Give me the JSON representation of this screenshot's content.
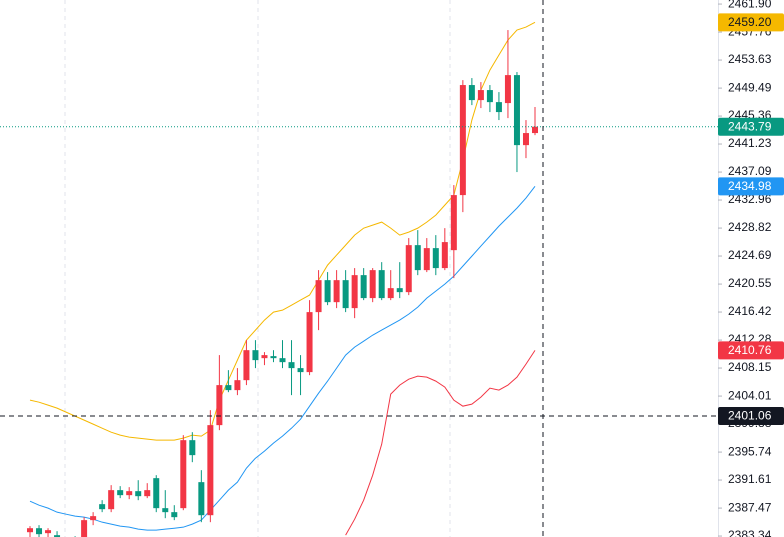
{
  "chart_data": {
    "type": "candlestick",
    "ylim": [
      2383.2,
      2462.5
    ],
    "yticks": [
      {
        "value": 2461.9,
        "label": "2461.90"
      },
      2457.76,
      2453.63,
      2449.49,
      2445.36,
      2441.23,
      2437.09,
      2432.96,
      2428.82,
      2424.69,
      2420.55,
      2416.42,
      2412.28,
      2408.15,
      2404.01,
      2399.88,
      2395.74,
      2391.61,
      2387.47,
      2383.34
    ],
    "up_color": "#f23645",
    "down_color": "#089981",
    "candles": {
      "open": [
        2383.91,
        2384.5,
        2383.77,
        2383.47,
        2381.99,
        2382.58,
        2383.18,
        2385.69,
        2388.05,
        2387.31,
        2390.12,
        2389.38,
        2389.97,
        2389.23,
        2391.89,
        2387.46,
        2386.87,
        2387.46,
        2397.5,
        2391.3,
        2386.42,
        2399.72,
        2405.63,
        2404.89,
        2406.36,
        2410.79,
        2409.61,
        2409.91,
        2409.61,
        2409.02,
        2408.14,
        2407.55,
        2416.41,
        2421.13,
        2417.88,
        2421.13,
        2417.0,
        2421.87,
        2418.48,
        2422.61,
        2418.48,
        2419.95,
        2419.36,
        2426.3,
        2422.61,
        2425.86,
        2422.91,
        2425.56,
        2433.69,
        2449.94,
        2447.72,
        2449.2,
        2447.42,
        2447.28,
        2451.41,
        2441.07,
        2442.85
      ],
      "high": [
        2384.8,
        2384.95,
        2384.5,
        2384.06,
        2383.03,
        2383.32,
        2386.13,
        2386.87,
        2388.64,
        2390.86,
        2390.71,
        2390.56,
        2391.59,
        2391.15,
        2392.33,
        2390.12,
        2387.9,
        2398.24,
        2398.68,
        2393.07,
        2401.93,
        2410.06,
        2407.84,
        2408.14,
        2412.27,
        2412.27,
        2410.5,
        2410.79,
        2412.27,
        2412.27,
        2410.06,
        2418.18,
        2422.61,
        2422.32,
        2422.61,
        2422.61,
        2422.91,
        2422.91,
        2422.91,
        2423.79,
        2422.61,
        2423.79,
        2427.34,
        2428.52,
        2427.34,
        2427.78,
        2428.81,
        2435.17,
        2450.67,
        2450.97,
        2450.38,
        2449.94,
        2448.9,
        2458.06,
        2451.86,
        2444.77,
        2446.69
      ],
      "low": [
        2383.18,
        2383.18,
        2383.18,
        2382.73,
        2381.25,
        2381.55,
        2382.73,
        2384.95,
        2386.87,
        2386.87,
        2388.94,
        2388.79,
        2388.64,
        2388.94,
        2386.87,
        2385.98,
        2385.69,
        2387.16,
        2394.25,
        2385.39,
        2385.39,
        2398.98,
        2404.59,
        2404.15,
        2405.63,
        2408.14,
        2408.58,
        2409.02,
        2408.14,
        2404.15,
        2404.15,
        2407.1,
        2413.75,
        2417.44,
        2417.0,
        2416.41,
        2415.52,
        2418.18,
        2417.88,
        2418.18,
        2418.18,
        2418.48,
        2418.92,
        2421.87,
        2422.32,
        2421.87,
        2422.61,
        2421.43,
        2431.18,
        2446.98,
        2446.54,
        2445.95,
        2444.77,
        2445.06,
        2437.09,
        2439.15,
        2442.55
      ],
      "close": [
        2384.5,
        2383.62,
        2384.21,
        2383.18,
        2382.58,
        2382.29,
        2385.69,
        2386.28,
        2387.31,
        2390.12,
        2389.38,
        2389.97,
        2389.23,
        2390.12,
        2387.46,
        2386.87,
        2386.13,
        2397.5,
        2395.29,
        2386.42,
        2399.72,
        2405.63,
        2404.89,
        2406.36,
        2410.79,
        2409.32,
        2410.06,
        2409.61,
        2409.02,
        2408.14,
        2407.55,
        2416.41,
        2421.13,
        2417.88,
        2421.13,
        2417.0,
        2421.87,
        2418.48,
        2422.61,
        2418.48,
        2419.95,
        2419.36,
        2426.3,
        2422.61,
        2425.86,
        2422.91,
        2426.75,
        2433.69,
        2449.94,
        2447.72,
        2449.2,
        2447.42,
        2445.95,
        2451.41,
        2441.07,
        2442.85,
        2443.79
      ]
    },
    "lines": [
      {
        "color": "#f5b800",
        "values": [
          2403.41,
          2403.11,
          2402.67,
          2402.23,
          2401.64,
          2401.05,
          2400.46,
          2399.87,
          2399.27,
          2398.68,
          2398.24,
          2397.95,
          2397.8,
          2397.65,
          2397.5,
          2397.5,
          2397.5,
          2397.8,
          2398.24,
          2398.09,
          2398.98,
          2403.41,
          2406.36,
          2409.32,
          2412.27,
          2413.75,
          2415.23,
          2416.41,
          2416.7,
          2417.44,
          2418.18,
          2418.92,
          2421.13,
          2423.35,
          2424.83,
          2426.3,
          2427.78,
          2428.81,
          2429.26,
          2429.7,
          2428.81,
          2427.78,
          2428.22,
          2428.81,
          2429.7,
          2430.73,
          2432.21,
          2433.69,
          2438.86,
          2444.77,
          2449.2,
          2452.15,
          2454.37,
          2456.58,
          2458.06,
          2458.5,
          2459.2
        ]
      },
      {
        "color": "#2196f3",
        "values": [
          2388.49,
          2387.9,
          2387.46,
          2386.87,
          2386.57,
          2386.28,
          2386.13,
          2385.83,
          2385.39,
          2385.1,
          2384.8,
          2384.65,
          2384.36,
          2384.21,
          2384.21,
          2384.36,
          2384.5,
          2384.65,
          2385.1,
          2385.69,
          2387.16,
          2388.64,
          2390.12,
          2391.3,
          2393.37,
          2394.84,
          2395.88,
          2397.06,
          2398.09,
          2399.27,
          2400.6,
          2402.52,
          2404.44,
          2406.22,
          2408.14,
          2410.06,
          2411.24,
          2412.12,
          2413.01,
          2413.75,
          2414.49,
          2415.23,
          2416.11,
          2417.15,
          2418.48,
          2419.51,
          2420.54,
          2421.72,
          2423.2,
          2424.68,
          2426.16,
          2427.63,
          2429.11,
          2430.44,
          2431.77,
          2433.25,
          2434.98
        ]
      },
      {
        "color": "#f23645",
        "values": [
          null,
          null,
          null,
          null,
          null,
          null,
          null,
          null,
          null,
          null,
          null,
          null,
          null,
          null,
          null,
          null,
          null,
          null,
          null,
          null,
          null,
          null,
          null,
          null,
          null,
          null,
          null,
          null,
          null,
          null,
          null,
          null,
          null,
          null,
          null,
          2383.47,
          2385.83,
          2388.64,
          2392.33,
          2396.91,
          2404.3,
          2405.63,
          2406.51,
          2406.95,
          2406.81,
          2406.22,
          2405.33,
          2403.41,
          2402.52,
          2402.82,
          2403.85,
          2405.18,
          2404.89,
          2405.63,
          2406.81,
          2408.73,
          2410.76
        ]
      }
    ],
    "last_price": {
      "value": 2443.79,
      "color": "#089981"
    },
    "price_labels": [
      {
        "value": 2459.2,
        "label": "2459.20",
        "color": "#f5b800",
        "text_color": "#131722"
      },
      {
        "value": 2434.98,
        "label": 2434.98,
        "color": "#2196f3",
        "text_color": "#ffffff"
      },
      {
        "value": 2410.76,
        "label": 2410.76,
        "color": "#f23645",
        "text_color": "#ffffff"
      }
    ],
    "crosshair": {
      "value": 2401.06,
      "label": 2401.06,
      "color": "#131722"
    }
  }
}
